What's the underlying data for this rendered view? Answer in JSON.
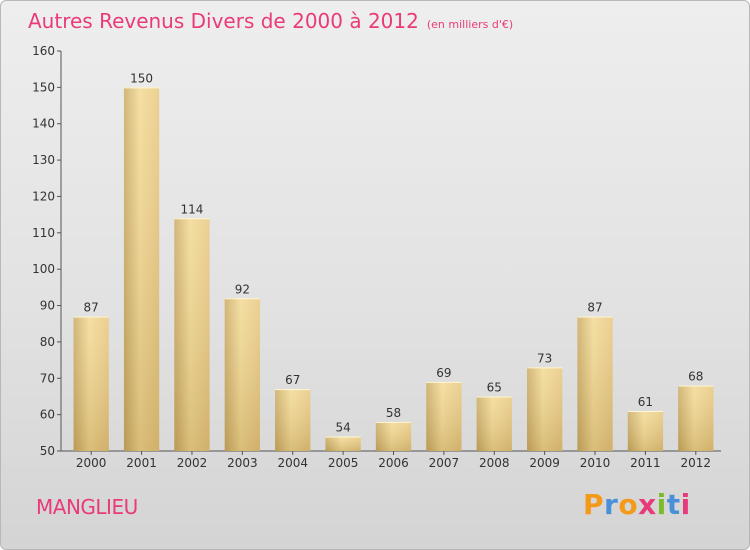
{
  "header": {
    "title": "Autres Revenus Divers de 2000 à 2012",
    "unit": "(en milliers d'€)"
  },
  "footer": {
    "commune": "MANGLIEU",
    "logo_text": "Proxiti"
  },
  "colors": {
    "title": "#ea3a7a",
    "bar_light": "#f5de9c",
    "bar_dark": "#c8a85e"
  },
  "chart_data": {
    "type": "bar",
    "title": "Autres Revenus Divers de 2000 à 2012 (en milliers d'€)",
    "xlabel": "",
    "ylabel": "",
    "ylim": [
      50,
      160
    ],
    "yticks": [
      50,
      60,
      70,
      80,
      90,
      100,
      110,
      120,
      130,
      140,
      150,
      160
    ],
    "grid": false,
    "categories": [
      "2000",
      "2001",
      "2002",
      "2003",
      "2004",
      "2005",
      "2006",
      "2007",
      "2008",
      "2009",
      "2010",
      "2011",
      "2012"
    ],
    "values": [
      87,
      150,
      114,
      92,
      67,
      54,
      58,
      69,
      65,
      73,
      87,
      61,
      68
    ]
  }
}
